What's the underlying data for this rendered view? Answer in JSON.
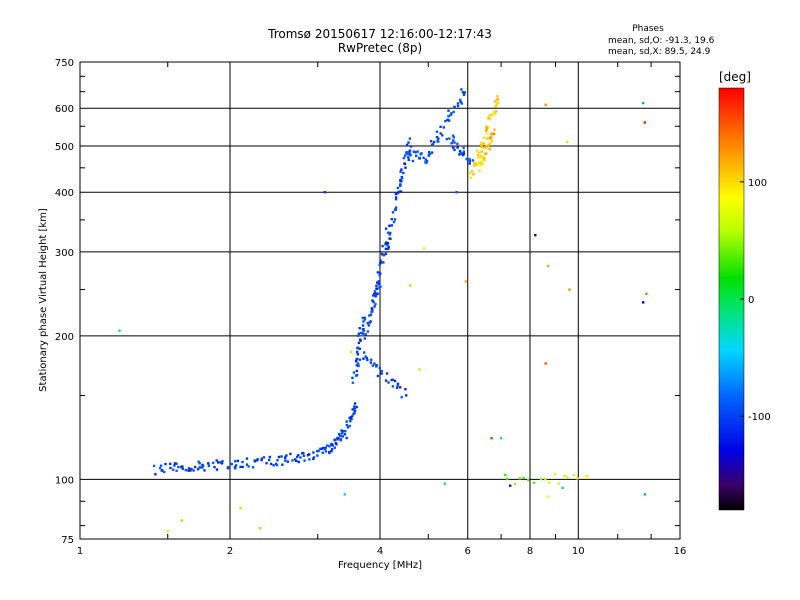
{
  "chart_data": {
    "type": "scatter",
    "title": "Tromsø 20150617 12:16:00-12:17:43",
    "subtitle": "RwPretec (8p)",
    "xlabel": "Frequency [MHz]",
    "ylabel": "Stationary phase Virtual Height [km]",
    "x_scale": "log",
    "y_scale": "log",
    "xlim": [
      1,
      16
    ],
    "ylim": [
      75,
      750
    ],
    "x_ticks": [
      1,
      2,
      4,
      6,
      8,
      10,
      16
    ],
    "y_ticks": [
      75,
      100,
      200,
      300,
      400,
      500,
      600,
      750
    ],
    "x_tick_labels": [
      "1",
      "2",
      "4",
      "6",
      "8",
      "10",
      "16"
    ],
    "y_tick_labels": [
      "75",
      "100",
      "200",
      "300",
      "400",
      "500",
      "600",
      "750"
    ],
    "grid": true,
    "stats": {
      "title": "Phases",
      "o_line": "mean, sd,O: -91.3, 19.6",
      "x_line": "mean, sd,X:  89.5, 24.9"
    },
    "colorbar": {
      "label": "[deg]",
      "range": [
        -180,
        180
      ],
      "ticks": [
        100,
        0,
        -100
      ],
      "tick_labels": [
        "100",
        "0",
        "-100"
      ]
    },
    "series": [
      {
        "trace_points": [
          [
            1.42,
            105,
            -100,
            1.75,
            107,
            -100,
            30
          ],
          [
            1.75,
            107,
            -100,
            2.05,
            107,
            -100,
            20
          ],
          [
            2.05,
            108,
            -100,
            2.6,
            110,
            -100,
            30
          ],
          [
            2.6,
            110,
            -100,
            3.1,
            114,
            -100,
            28
          ],
          [
            3.1,
            114,
            -100,
            3.4,
            125,
            -100,
            28
          ],
          [
            3.4,
            125,
            -100,
            3.6,
            145,
            -100,
            22
          ],
          [
            3.55,
            160,
            -100,
            3.7,
            220,
            -100,
            28
          ],
          [
            3.7,
            200,
            -100,
            4.0,
            260,
            -100,
            30
          ],
          [
            3.9,
            235,
            -100,
            4.15,
            330,
            -100,
            26
          ],
          [
            4.1,
            290,
            -100,
            4.4,
            430,
            -100,
            28
          ],
          [
            4.35,
            400,
            -105,
            4.6,
            520,
            -100,
            22
          ],
          [
            4.5,
            480,
            -95,
            5.0,
            470,
            -90,
            24
          ],
          [
            5.0,
            480,
            -95,
            5.9,
            650,
            -100,
            38
          ],
          [
            5.5,
            520,
            -100,
            6.1,
            460,
            -95,
            28
          ],
          [
            3.6,
            185,
            -100,
            4.5,
            150,
            -100,
            32
          ],
          [
            6.1,
            430,
            100,
            6.9,
            640,
            110,
            42
          ],
          [
            6.3,
            450,
            95,
            6.8,
            530,
            120,
            30
          ],
          [
            7.1,
            100,
            30,
            10.5,
            100,
            90,
            18
          ]
        ]
      }
    ],
    "scatter_points": [
      [
        1.2,
        205,
        -30
      ],
      [
        1.5,
        78,
        95
      ],
      [
        1.6,
        82,
        110
      ],
      [
        2.1,
        87,
        105
      ],
      [
        2.3,
        79,
        110
      ],
      [
        3.1,
        400,
        -110
      ],
      [
        3.4,
        93,
        -40
      ],
      [
        3.5,
        185,
        60
      ],
      [
        4.8,
        170,
        100
      ],
      [
        4.9,
        305,
        95
      ],
      [
        5.4,
        98,
        -20
      ],
      [
        5.95,
        260,
        120
      ],
      [
        6.7,
        122,
        160
      ],
      [
        7.0,
        122,
        -40
      ],
      [
        7.3,
        97,
        -120
      ],
      [
        8.2,
        325,
        -140
      ],
      [
        8.6,
        610,
        130
      ],
      [
        8.7,
        280,
        120
      ],
      [
        8.6,
        175,
        150
      ],
      [
        8.7,
        92,
        80
      ],
      [
        9.5,
        510,
        100
      ],
      [
        9.6,
        250,
        130
      ],
      [
        9.3,
        96,
        -50
      ],
      [
        13.5,
        615,
        -60
      ],
      [
        13.6,
        560,
        170
      ],
      [
        13.7,
        245,
        140
      ],
      [
        13.5,
        235,
        -130
      ],
      [
        13.6,
        93,
        -60
      ],
      [
        4.6,
        255,
        110
      ],
      [
        5.7,
        400,
        -90
      ]
    ]
  }
}
